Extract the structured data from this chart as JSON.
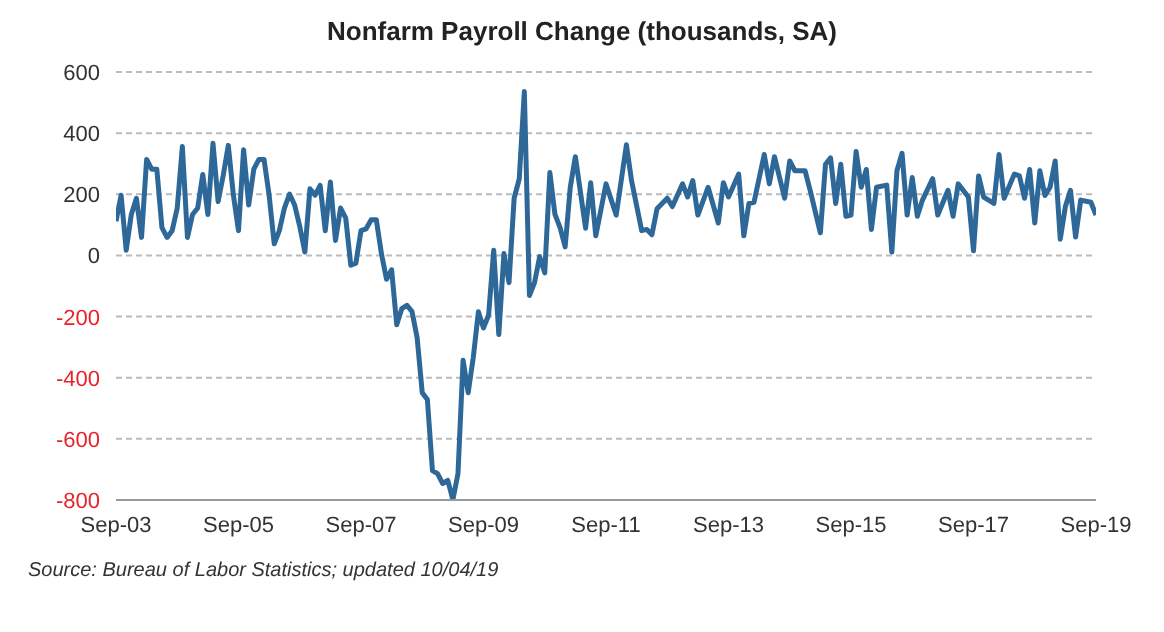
{
  "chart_data": {
    "type": "line",
    "title": "Nonfarm Payroll Change (thousands, SA)",
    "annotations": [
      "Source: Bureau of Labor Statistics; updated 10/04/19"
    ],
    "x": [
      "2003-09",
      "2003-10",
      "2003-11",
      "2003-12",
      "2004-01",
      "2004-02",
      "2004-03",
      "2004-04",
      "2004-05",
      "2004-06",
      "2004-07",
      "2004-08",
      "2004-09",
      "2004-10",
      "2004-11",
      "2004-12",
      "2005-01",
      "2005-02",
      "2005-03",
      "2005-04",
      "2005-05",
      "2005-06",
      "2005-07",
      "2005-08",
      "2005-09",
      "2005-10",
      "2005-11",
      "2005-12",
      "2006-01",
      "2006-02",
      "2006-03",
      "2006-04",
      "2006-05",
      "2006-06",
      "2006-07",
      "2006-08",
      "2006-09",
      "2006-10",
      "2006-11",
      "2006-12",
      "2007-01",
      "2007-02",
      "2007-03",
      "2007-04",
      "2007-05",
      "2007-06",
      "2007-07",
      "2007-08",
      "2007-09",
      "2007-10",
      "2007-11",
      "2007-12",
      "2008-01",
      "2008-02",
      "2008-03",
      "2008-04",
      "2008-05",
      "2008-06",
      "2008-07",
      "2008-08",
      "2008-09",
      "2008-10",
      "2008-11",
      "2008-12",
      "2009-01",
      "2009-02",
      "2009-03",
      "2009-04",
      "2009-05",
      "2009-06",
      "2009-07",
      "2009-08",
      "2009-09",
      "2009-10",
      "2009-11",
      "2009-12",
      "2010-01",
      "2010-02",
      "2010-03",
      "2010-04",
      "2010-05",
      "2010-06",
      "2010-07",
      "2010-08",
      "2010-09",
      "2010-10",
      "2010-11",
      "2010-12",
      "2011-01",
      "2011-02",
      "2011-03",
      "2011-05",
      "2011-06",
      "2011-07",
      "2011-09",
      "2011-11",
      "2012-01",
      "2012-02",
      "2012-04",
      "2012-05",
      "2012-06",
      "2012-07",
      "2012-09",
      "2012-10",
      "2012-12",
      "2013-01",
      "2013-02",
      "2013-03",
      "2013-05",
      "2013-07",
      "2013-08",
      "2013-09",
      "2013-11",
      "2013-12",
      "2014-01",
      "2014-02",
      "2014-04",
      "2014-05",
      "2014-06",
      "2014-08",
      "2014-09",
      "2014-10",
      "2014-12",
      "2015-01",
      "2015-03",
      "2015-04",
      "2015-05",
      "2015-06",
      "2015-07",
      "2015-08",
      "2015-09",
      "2015-10",
      "2015-11",
      "2015-12",
      "2016-01",
      "2016-02",
      "2016-04",
      "2016-05",
      "2016-06",
      "2016-07",
      "2016-08",
      "2016-09",
      "2016-10",
      "2016-11",
      "2017-01",
      "2017-02",
      "2017-04",
      "2017-05",
      "2017-06",
      "2017-08",
      "2017-09",
      "2017-10",
      "2017-11",
      "2018-01",
      "2018-02",
      "2018-03",
      "2018-05",
      "2018-06",
      "2018-07",
      "2018-08",
      "2018-09",
      "2018-10",
      "2018-11",
      "2018-12",
      "2019-01",
      "2019-02",
      "2019-03",
      "2019-04",
      "2019-05",
      "2019-06",
      "2019-08",
      "2019-09"
    ],
    "series": [
      {
        "color": "#2e6899",
        "values": [
          112,
          197,
          17,
          134,
          187,
          59,
          314,
          282,
          282,
          91,
          59,
          81,
          155,
          356,
          59,
          134,
          155,
          265,
          134,
          367,
          176,
          261,
          360,
          197,
          81,
          346,
          165,
          282,
          314,
          314,
          197,
          38,
          81,
          155,
          201,
          165,
          95,
          11,
          218,
          197,
          229,
          81,
          240,
          49,
          155,
          123,
          -32,
          -25,
          81,
          87,
          117,
          117,
          6,
          -78,
          -47,
          -227,
          -174,
          -163,
          -184,
          -269,
          -449,
          -471,
          -704,
          -714,
          -746,
          -736,
          -799,
          -714,
          -343,
          -449,
          -333,
          -184,
          -237,
          -195,
          17,
          -259,
          6,
          -89,
          187,
          250,
          536,
          -131,
          -89,
          -4,
          -57,
          271,
          134,
          91,
          28,
          223,
          323,
          89,
          238,
          64,
          234,
          132,
          362,
          245,
          81,
          85,
          68,
          153,
          187,
          160,
          234,
          191,
          245,
          132,
          223,
          106,
          238,
          191,
          266,
          64,
          170,
          174,
          330,
          234,
          323,
          187,
          309,
          277,
          277,
          213,
          74,
          298,
          319,
          170,
          298,
          128,
          132,
          340,
          223,
          281,
          85,
          223,
          230,
          11,
          277,
          334,
          132,
          255,
          128,
          181,
          251,
          132,
          213,
          128,
          234,
          191,
          15,
          260,
          191,
          170,
          330,
          187,
          266,
          260,
          187,
          281,
          106,
          277,
          196,
          223,
          309,
          53,
          160,
          213,
          60,
          181,
          174,
          132
        ]
      }
    ],
    "xlim": [
      "2003-09",
      "2019-09"
    ],
    "xticks": [
      {
        "value": "2003-09",
        "label": "Sep-03"
      },
      {
        "value": "2005-09",
        "label": "Sep-05"
      },
      {
        "value": "2007-09",
        "label": "Sep-07"
      },
      {
        "value": "2009-09",
        "label": "Sep-09"
      },
      {
        "value": "2011-09",
        "label": "Sep-11"
      },
      {
        "value": "2013-09",
        "label": "Sep-13"
      },
      {
        "value": "2015-09",
        "label": "Sep-15"
      },
      {
        "value": "2017-09",
        "label": "Sep-17"
      },
      {
        "value": "2019-09",
        "label": "Sep-19"
      }
    ],
    "ylim": [
      -800,
      600
    ],
    "yticks": [
      -800,
      -600,
      -400,
      -200,
      0,
      200,
      400,
      600
    ],
    "grid": "y",
    "legend": false,
    "marker": "none",
    "line_style": "solid"
  }
}
